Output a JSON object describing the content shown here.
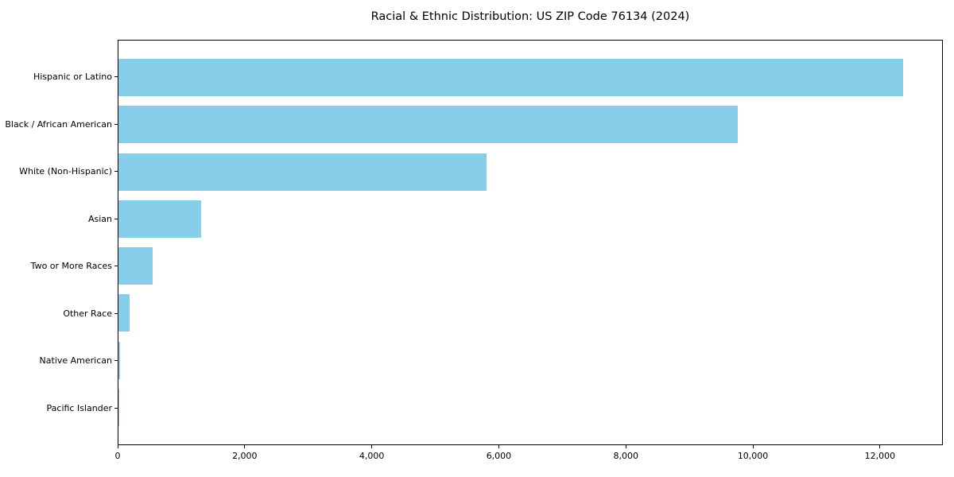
{
  "chart_data": {
    "type": "bar",
    "orientation": "horizontal",
    "title": "Racial & Ethnic Distribution: US ZIP Code 76134 (2024)",
    "categories": [
      "Hispanic or Latino",
      "Black / African American",
      "White (Non-Hispanic)",
      "Asian",
      "Two or More Races",
      "Other Race",
      "Native American",
      "Pacific Islander"
    ],
    "values": [
      12370,
      9770,
      5810,
      1300,
      540,
      180,
      25,
      10
    ],
    "xlabel": "",
    "ylabel": "",
    "xlim": [
      0,
      12990
    ],
    "x_ticks": [
      0,
      2000,
      4000,
      6000,
      8000,
      10000,
      12000
    ],
    "x_tick_labels": [
      "0",
      "2,000",
      "4,000",
      "6,000",
      "8,000",
      "10,000",
      "12,000"
    ],
    "bar_color": "#87CEEB",
    "background_color": "#FFFFFF",
    "axis_color": "#000000",
    "grid": false,
    "legend": null
  }
}
